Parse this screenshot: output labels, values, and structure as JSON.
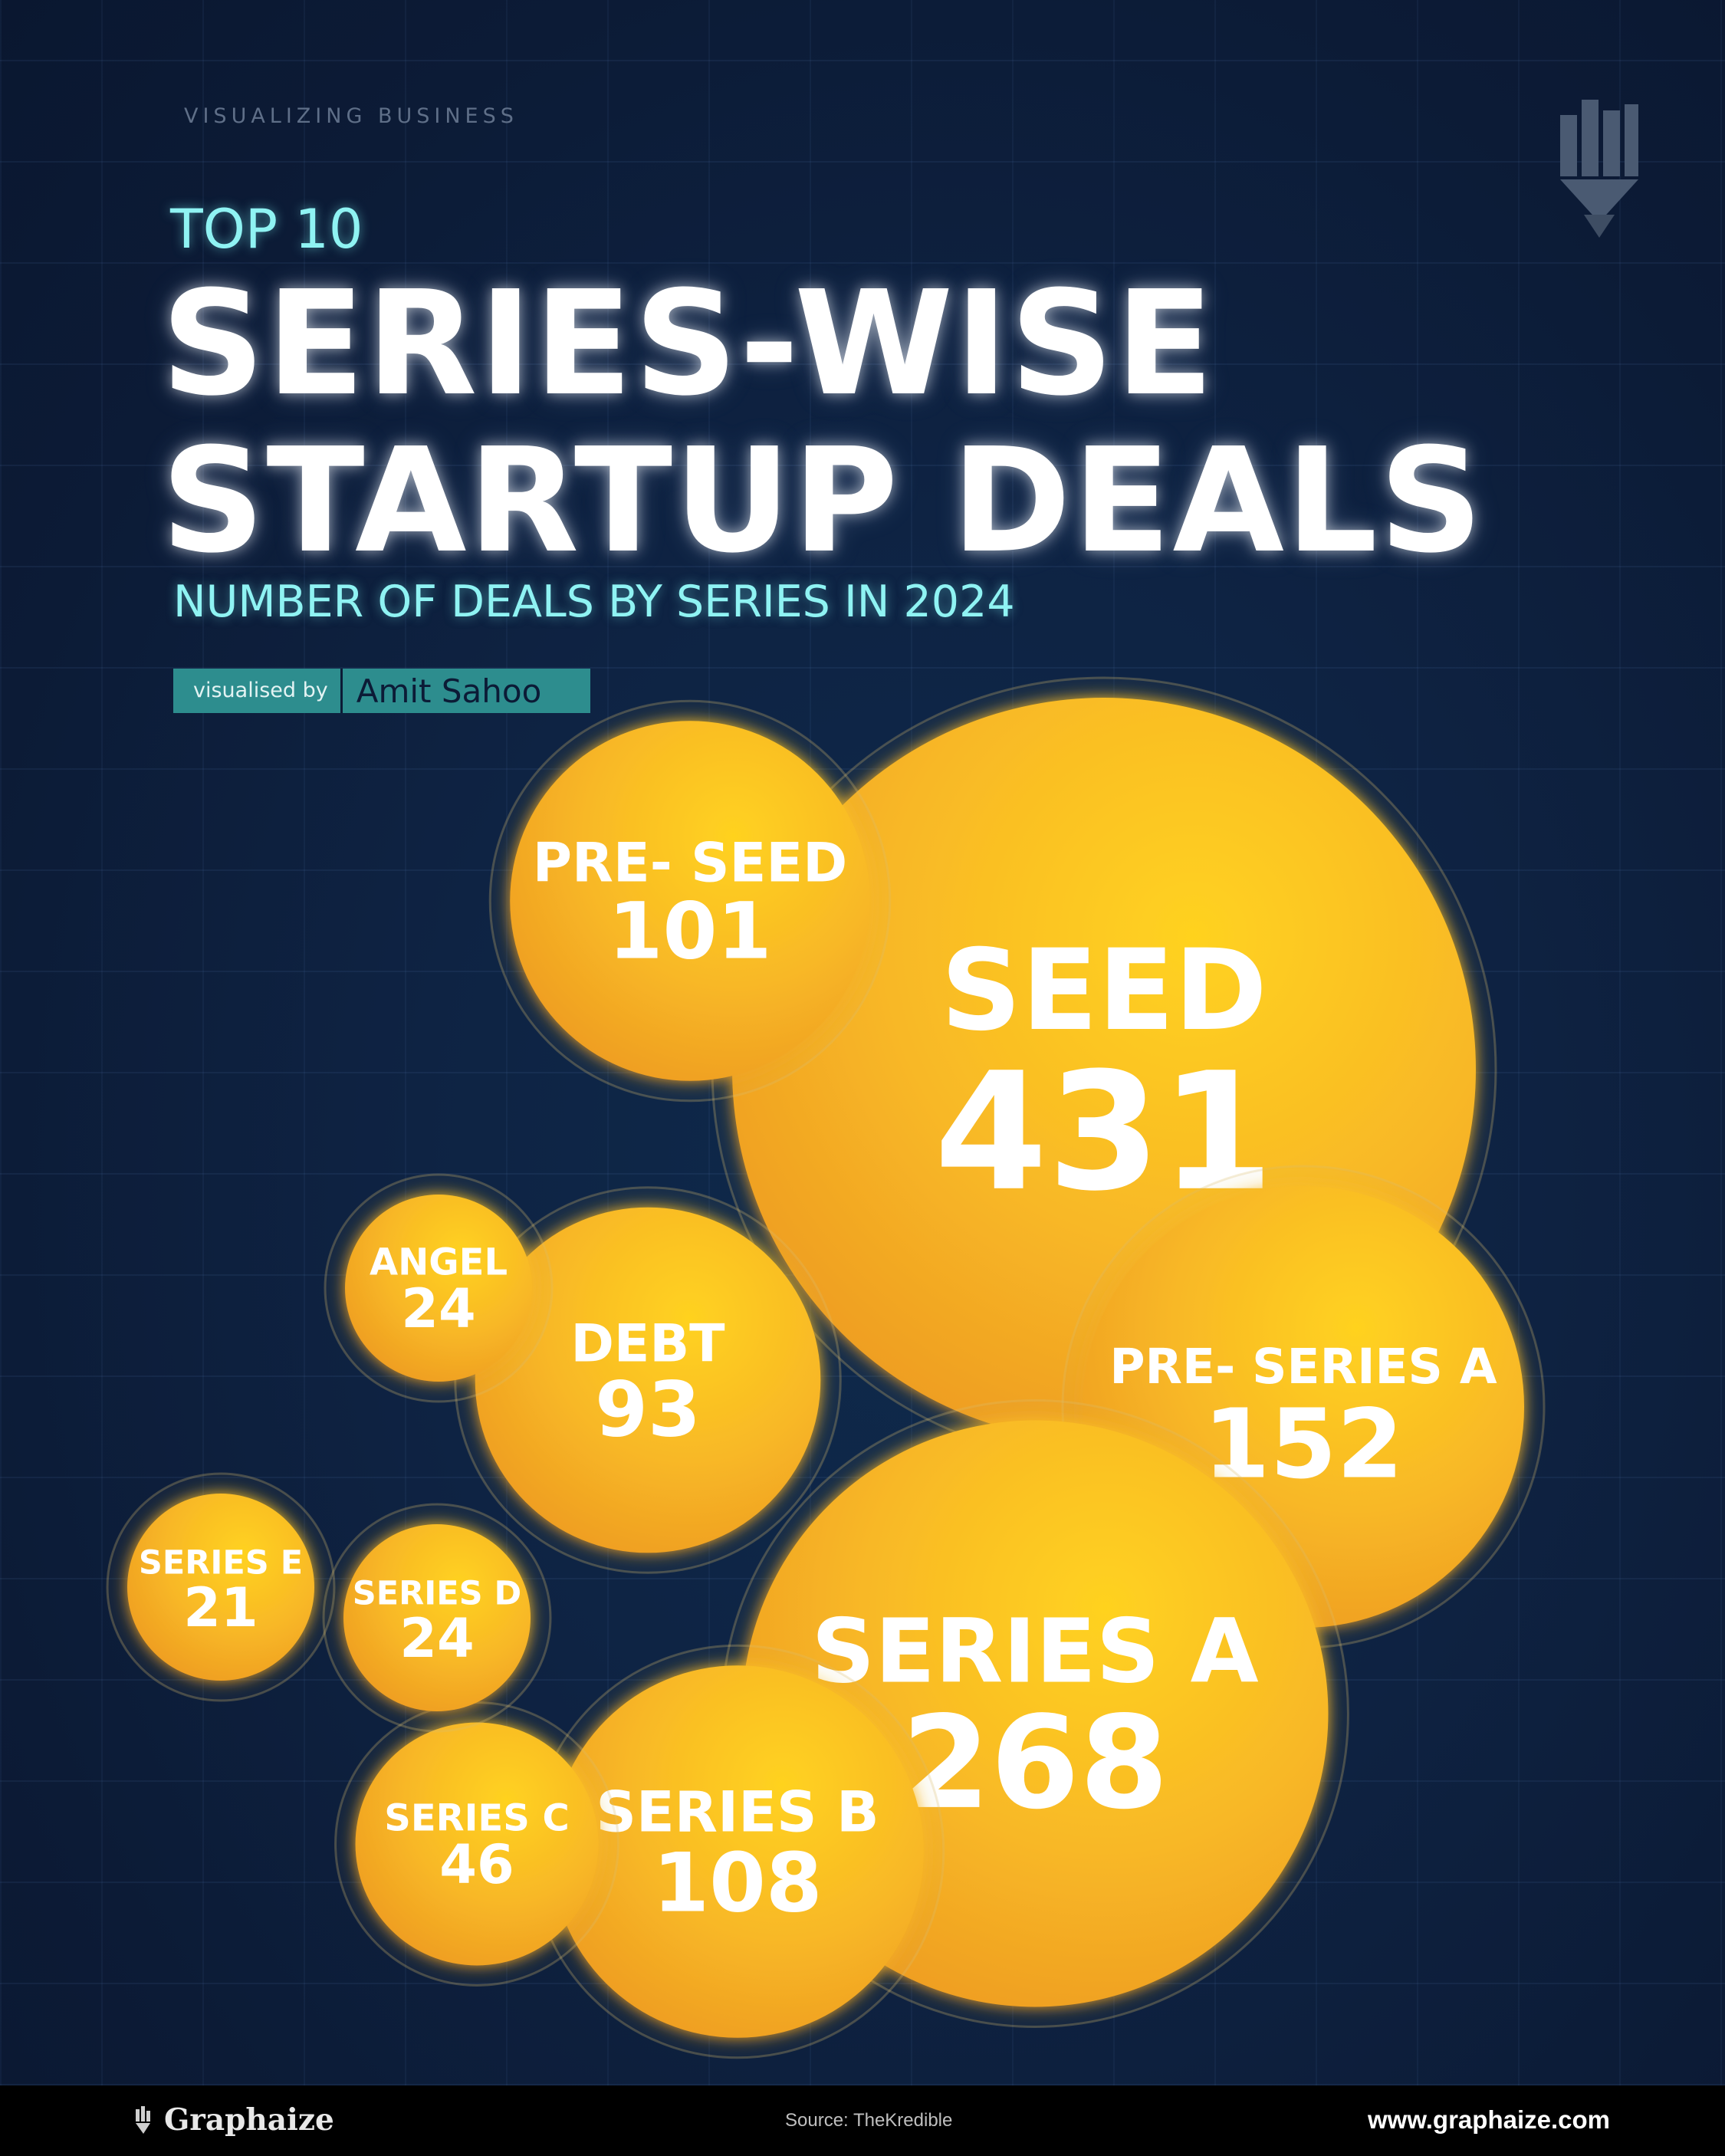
{
  "header": {
    "eyebrow": "VISUALIZING BUSINESS",
    "kicker": "TOP 10",
    "title_line1": "SERIES-WISE",
    "title_line2": "STARTUP DEALS",
    "subtitle": "NUMBER OF DEALS BY SERIES IN 2024",
    "byline_label": "visualised by",
    "byline_name": "Amit Sahoo",
    "logo_icon": "bar-chart-pencil-icon"
  },
  "colors": {
    "background": "#0c1b36",
    "bubble_light": "#ffd21f",
    "bubble_dark": "#f0a020",
    "accent_cyan": "#8ff3f3",
    "byline_bg": "#2d8d8e"
  },
  "chart_data": {
    "type": "bubble",
    "title": "SERIES-WISE STARTUP DEALS",
    "subtitle": "NUMBER OF DEALS BY SERIES IN 2024",
    "categories": [
      "PRE- SEED",
      "SEED",
      "ANGEL",
      "DEBT",
      "PRE- SERIES A",
      "SERIES E",
      "SERIES D",
      "SERIES A",
      "SERIES C",
      "SERIES B"
    ],
    "values": [
      101,
      431,
      24,
      93,
      152,
      21,
      24,
      268,
      46,
      108
    ]
  },
  "footer": {
    "brand": "Graphaize",
    "brand_icon": "pencil-bars-icon",
    "source": "Source: TheKredible",
    "website": "www.graphaize.com"
  }
}
